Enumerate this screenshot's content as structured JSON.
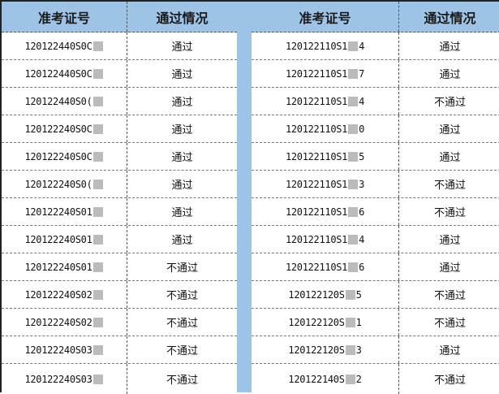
{
  "headers": {
    "id": "准考证号",
    "status": "通过情况"
  },
  "left": [
    {
      "id": "120122440S0C",
      "status": "通过"
    },
    {
      "id": "120122440S0C",
      "status": "通过"
    },
    {
      "id": "120122440S0(",
      "status": "通过"
    },
    {
      "id": "120122240S0C",
      "status": "通过"
    },
    {
      "id": "120122240S0C",
      "status": "通过"
    },
    {
      "id": "120122240S0(",
      "status": "通过"
    },
    {
      "id": "120122240S01",
      "status": "通过"
    },
    {
      "id": "120122240S01",
      "status": "通过"
    },
    {
      "id": "120122240S01",
      "status": "不通过"
    },
    {
      "id": "120122240S02",
      "status": "不通过"
    },
    {
      "id": "120122240S02",
      "status": "不通过"
    },
    {
      "id": "120122240S03",
      "status": "不通过"
    },
    {
      "id": "120122240S03",
      "status": "不通过"
    }
  ],
  "right": [
    {
      "id": "120122110S1",
      "suffix": "4",
      "status": "通过"
    },
    {
      "id": "120122110S1",
      "suffix": "7",
      "status": "通过"
    },
    {
      "id": "120122110S1",
      "suffix": "4",
      "status": "不通过"
    },
    {
      "id": "120122110S1",
      "suffix": "0",
      "status": "通过"
    },
    {
      "id": "120122110S1",
      "suffix": "5",
      "status": "通过"
    },
    {
      "id": "120122110S1",
      "suffix": "3",
      "status": "不通过"
    },
    {
      "id": "120122110S1",
      "suffix": "6",
      "status": "不通过"
    },
    {
      "id": "120122110S1",
      "suffix": "4",
      "status": "通过"
    },
    {
      "id": "120122110S1",
      "suffix": "6",
      "status": "通过"
    },
    {
      "id": "120122120S",
      "suffix": "5",
      "status": "不通过"
    },
    {
      "id": "120122120S",
      "suffix": "1",
      "status": "不通过"
    },
    {
      "id": "120122120S",
      "suffix": "3",
      "status": "通过"
    },
    {
      "id": "120122140S",
      "suffix": "2",
      "status": "不通过"
    }
  ],
  "colors": {
    "header_bg": "#9dc3e6",
    "separator": "#9dc3e6"
  }
}
